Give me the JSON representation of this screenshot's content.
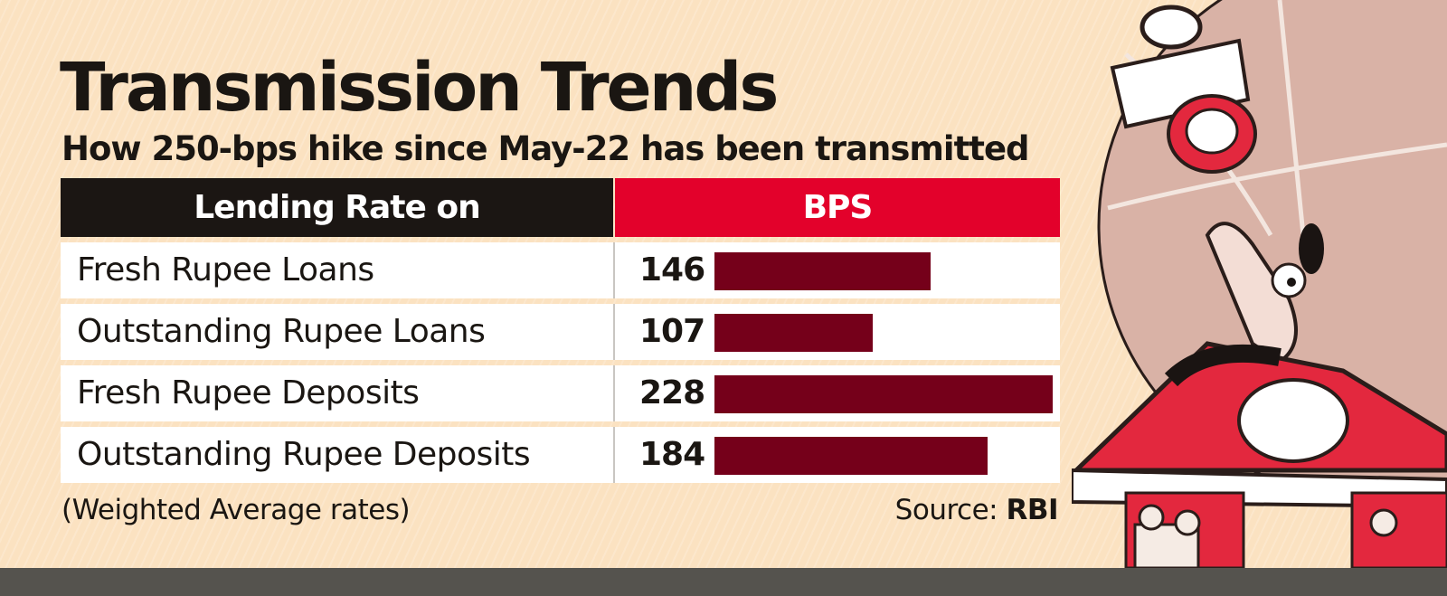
{
  "title": "Transmission Trends",
  "subtitle": "How 250-bps hike since May-22 has been transmitted",
  "chart_data": {
    "type": "bar",
    "orientation": "horizontal",
    "column_headers": [
      "Lending Rate on",
      "BPS"
    ],
    "categories": [
      "Fresh Rupee Loans",
      "Outstanding Rupee Loans",
      "Fresh Rupee Deposits",
      "Outstanding Rupee Deposits"
    ],
    "values": [
      146,
      107,
      228,
      184
    ],
    "value_labels": [
      "146",
      "107",
      "228",
      "184"
    ],
    "bar_color": "#75001a",
    "header_colors": {
      "left": "#1b1613",
      "right": "#e3012b"
    }
  },
  "note": "(Weighted Average rates)",
  "source": {
    "label": "Source:",
    "name": "RBI"
  }
}
